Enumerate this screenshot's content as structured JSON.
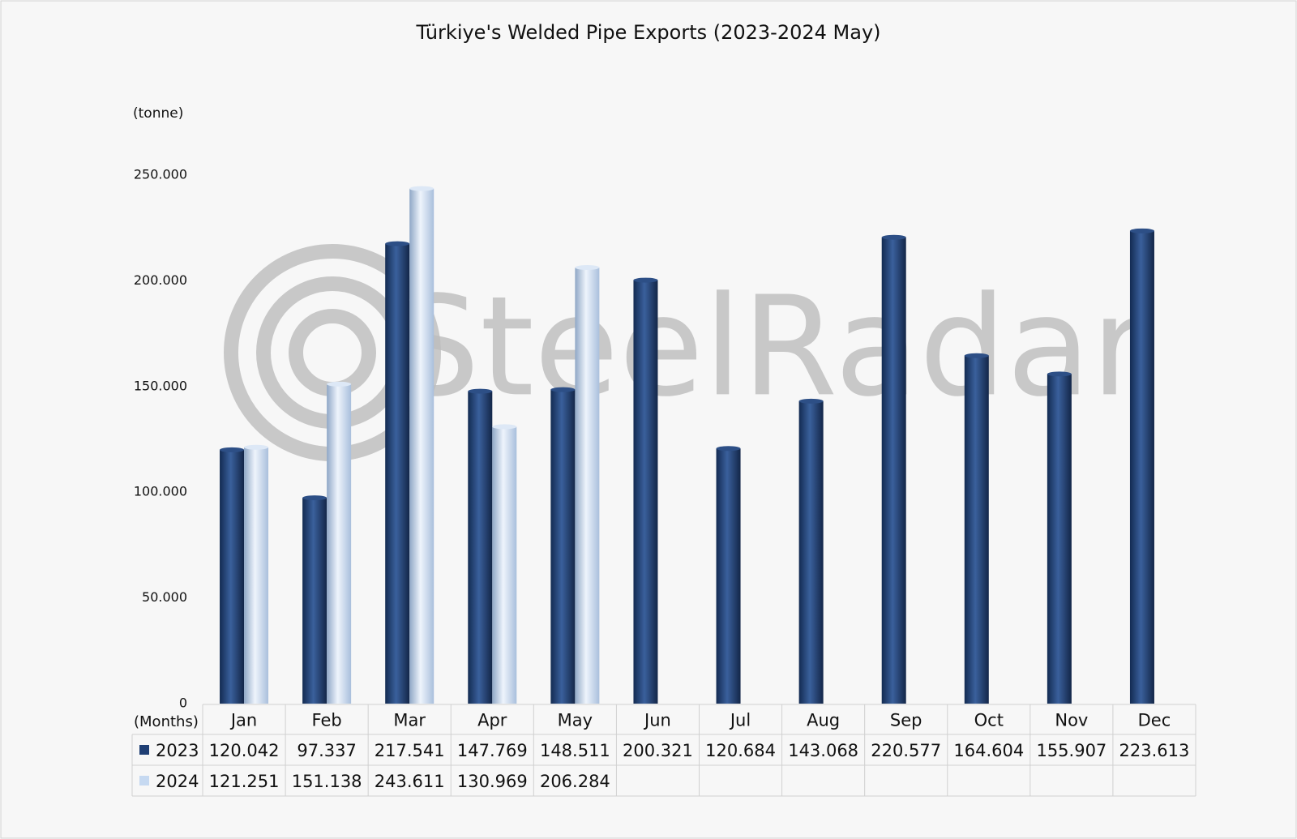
{
  "chart_data": {
    "type": "bar",
    "title": "Türkiye's Welded Pipe Exports (2023-2024 May)",
    "y_label": "(tonne)",
    "x_label": "(Months)",
    "watermark": "SteelRadar",
    "categories": [
      "Jan",
      "Feb",
      "Mar",
      "Apr",
      "May",
      "Jun",
      "Jul",
      "Aug",
      "Sep",
      "Oct",
      "Nov",
      "Dec"
    ],
    "series": [
      {
        "name": "2023",
        "color": "#1f3f74",
        "values": [
          120042,
          97337,
          217541,
          147769,
          148511,
          200321,
          120684,
          143068,
          220577,
          164604,
          155907,
          223613
        ],
        "value_labels": [
          "120.042",
          "97.337",
          "217.541",
          "147.769",
          "148.511",
          "200.321",
          "120.684",
          "143.068",
          "220.577",
          "164.604",
          "155.907",
          "223.613"
        ]
      },
      {
        "name": "2024",
        "color": "#c6d9f1",
        "values": [
          121251,
          151138,
          243611,
          130969,
          206284,
          null,
          null,
          null,
          null,
          null,
          null,
          null
        ],
        "value_labels": [
          "121.251",
          "151.138",
          "243.611",
          "130.969",
          "206.284",
          null,
          null,
          null,
          null,
          null,
          null,
          null
        ]
      }
    ],
    "ylim": [
      0,
      250000
    ],
    "yticks": [
      0,
      {
        "value": 50000,
        "label": "50.000"
      },
      {
        "value": 100000,
        "label": "100.000"
      },
      {
        "value": 150000,
        "label": "150.000"
      },
      {
        "value": 200000,
        "label": "200.000"
      },
      {
        "value": 250000,
        "label": "250.000"
      }
    ],
    "grid": false
  }
}
